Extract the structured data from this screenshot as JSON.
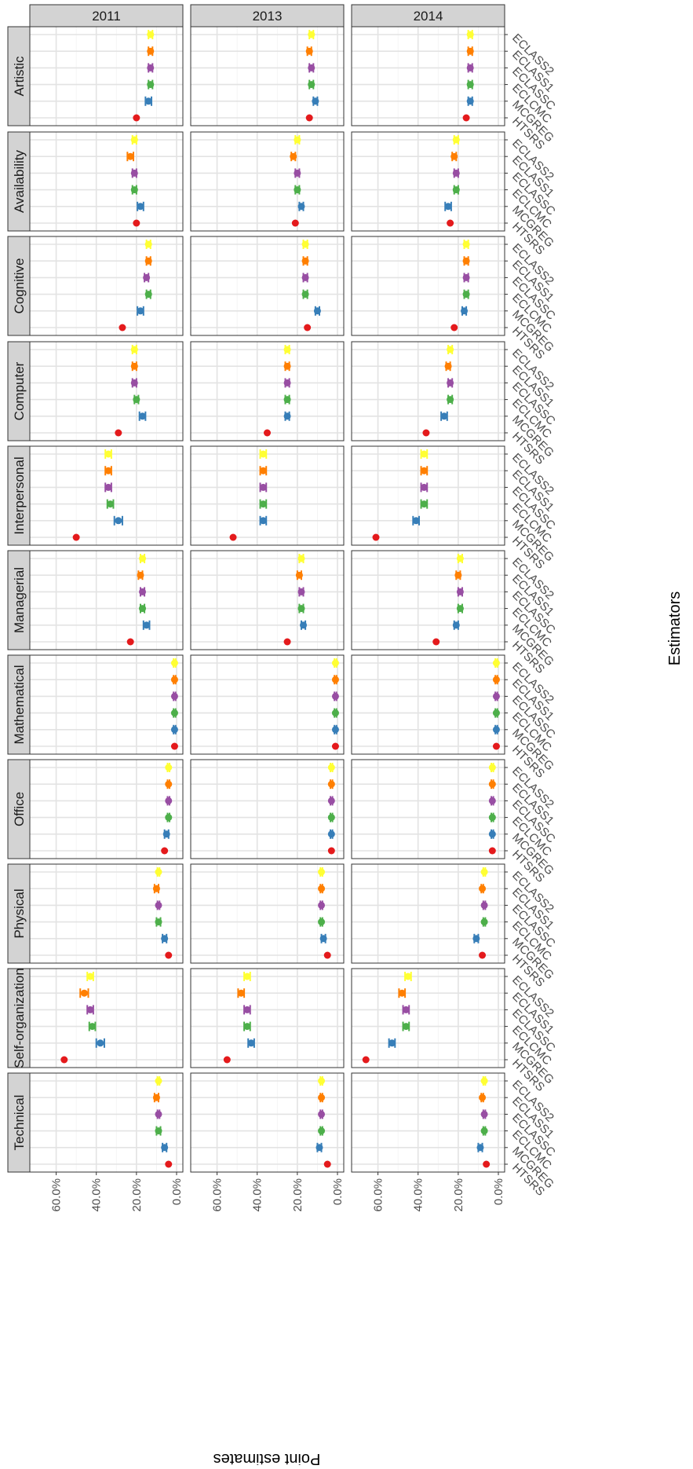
{
  "chart_data": {
    "type": "scatter",
    "subtype": "faceted point estimates with error bars (rotated plot)",
    "title": "",
    "xlabel": "Estimators",
    "ylabel": "Point estimates",
    "ylim": [
      0,
      70
    ],
    "y_ticks": [
      0,
      20,
      40,
      60
    ],
    "y_tick_labels": [
      "0.0%",
      "20.0%",
      "40.0%",
      "60.0%"
    ],
    "grid": true,
    "facet_rows": [
      "2011",
      "2013",
      "2014"
    ],
    "facet_cols": [
      "Artistic",
      "Availability",
      "Cognitive",
      "Computer",
      "Interpersonal",
      "Managerial",
      "Mathematical",
      "Office",
      "Physical",
      "Self-organization",
      "Technical"
    ],
    "categories": [
      "HTSRS",
      "MCGREG",
      "ECLCMC",
      "ECLASSC",
      "ECLASS1",
      "ECLASS2"
    ],
    "series_colors": {
      "HTSRS": "#e41a1c",
      "MCGREG": "#377eb8",
      "ECLCMC": "#4daf4a",
      "ECLASSC": "#984ea3",
      "ECLASS1": "#ff7f00",
      "ECLASS2": "#ffff33"
    },
    "panels": {
      "2011": {
        "Artistic": {
          "values": [
            20,
            14,
            13,
            13,
            13,
            13
          ],
          "errors": [
            0,
            1.5,
            1,
            1,
            1,
            1
          ]
        },
        "Availability": {
          "values": [
            20,
            18,
            21,
            21,
            23,
            21
          ],
          "errors": [
            0,
            1.5,
            1,
            1,
            1.5,
            1
          ]
        },
        "Cognitive": {
          "values": [
            27,
            18,
            14,
            15,
            14,
            14
          ],
          "errors": [
            0,
            1.5,
            1,
            1,
            1,
            1
          ]
        },
        "Computer": {
          "values": [
            29,
            17,
            20,
            21,
            21,
            21
          ],
          "errors": [
            0,
            1.5,
            1,
            1,
            1,
            1
          ]
        },
        "Interpersonal": {
          "values": [
            50,
            29,
            33,
            34,
            34,
            34
          ],
          "errors": [
            0,
            2,
            1.5,
            1.5,
            1.5,
            1.5
          ]
        },
        "Managerial": {
          "values": [
            23,
            15,
            17,
            17,
            18,
            17
          ],
          "errors": [
            0,
            1.5,
            1,
            1,
            1,
            1
          ]
        },
        "Mathematical": {
          "values": [
            1,
            1,
            1,
            1,
            1,
            1
          ],
          "errors": [
            0,
            0.5,
            0.5,
            0.5,
            0.5,
            0.5
          ]
        },
        "Office": {
          "values": [
            6,
            5,
            4,
            4,
            4,
            4
          ],
          "errors": [
            0,
            1,
            0.5,
            0.5,
            0.5,
            0.5
          ]
        },
        "Physical": {
          "values": [
            4,
            6,
            9,
            9,
            10,
            9
          ],
          "errors": [
            0,
            1,
            1,
            0.5,
            1,
            0.5
          ]
        },
        "Self-organization": {
          "values": [
            56,
            38,
            42,
            43,
            46,
            43
          ],
          "errors": [
            0,
            2,
            1.5,
            1.5,
            2,
            1.5
          ]
        },
        "Technical": {
          "values": [
            4,
            6,
            9,
            9,
            10,
            9
          ],
          "errors": [
            0,
            1,
            1,
            0.5,
            1,
            0.5
          ]
        }
      },
      "2013": {
        "Artistic": {
          "values": [
            14,
            11,
            13,
            13,
            14,
            13
          ],
          "errors": [
            0,
            1,
            1,
            1,
            1,
            1
          ]
        },
        "Availability": {
          "values": [
            21,
            18,
            20,
            20,
            22,
            20
          ],
          "errors": [
            0,
            1,
            1,
            1,
            1,
            1
          ]
        },
        "Cognitive": {
          "values": [
            15,
            10,
            16,
            16,
            16,
            16
          ],
          "errors": [
            0,
            1,
            1,
            1,
            1,
            1
          ]
        },
        "Computer": {
          "values": [
            35,
            25,
            25,
            25,
            25,
            25
          ],
          "errors": [
            0,
            1,
            1,
            1,
            1,
            1
          ]
        },
        "Interpersonal": {
          "values": [
            52,
            37,
            37,
            37,
            37,
            37
          ],
          "errors": [
            0,
            1.5,
            1.5,
            1.5,
            1.5,
            1.5
          ]
        },
        "Managerial": {
          "values": [
            25,
            17,
            18,
            18,
            19,
            18
          ],
          "errors": [
            0,
            1,
            1,
            1,
            1,
            1
          ]
        },
        "Mathematical": {
          "values": [
            1,
            1,
            1,
            1,
            1,
            1
          ],
          "errors": [
            0,
            0.5,
            0.5,
            0.5,
            0.5,
            0.5
          ]
        },
        "Office": {
          "values": [
            3,
            3,
            3,
            3,
            3,
            3
          ],
          "errors": [
            0,
            0.5,
            0.5,
            0.5,
            0.5,
            0.5
          ]
        },
        "Physical": {
          "values": [
            5,
            7,
            8,
            8,
            8,
            8
          ],
          "errors": [
            0,
            1,
            0.5,
            0.5,
            0.5,
            0.5
          ]
        },
        "Self-organization": {
          "values": [
            55,
            43,
            45,
            45,
            48,
            45
          ],
          "errors": [
            0,
            1.5,
            1.5,
            1.5,
            1.5,
            1.5
          ]
        },
        "Technical": {
          "values": [
            5,
            9,
            8,
            8,
            8,
            8
          ],
          "errors": [
            0,
            1,
            0.5,
            0.5,
            0.5,
            0.5
          ]
        }
      },
      "2014": {
        "Artistic": {
          "values": [
            16,
            14,
            14,
            14,
            14,
            14
          ],
          "errors": [
            0,
            1,
            1,
            1,
            1,
            1
          ]
        },
        "Availability": {
          "values": [
            24,
            25,
            21,
            21,
            22,
            21
          ],
          "errors": [
            0,
            1.5,
            1,
            1,
            1,
            1
          ]
        },
        "Cognitive": {
          "values": [
            22,
            17,
            16,
            16,
            16,
            16
          ],
          "errors": [
            0,
            1,
            1,
            1,
            1,
            1
          ]
        },
        "Computer": {
          "values": [
            36,
            27,
            24,
            24,
            25,
            24
          ],
          "errors": [
            0,
            1.5,
            1,
            1,
            1,
            1
          ]
        },
        "Interpersonal": {
          "values": [
            61,
            41,
            37,
            37,
            37,
            37
          ],
          "errors": [
            0,
            1.5,
            1.5,
            1.5,
            1.5,
            1.5
          ]
        },
        "Managerial": {
          "values": [
            31,
            21,
            19,
            19,
            20,
            19
          ],
          "errors": [
            0,
            1,
            1,
            1,
            1,
            1
          ]
        },
        "Mathematical": {
          "values": [
            1,
            1,
            1,
            1,
            1,
            1
          ],
          "errors": [
            0,
            0.5,
            0.5,
            0.5,
            0.5,
            0.5
          ]
        },
        "Office": {
          "values": [
            3,
            3,
            3,
            3,
            3,
            3
          ],
          "errors": [
            0,
            0.5,
            0.5,
            0.5,
            0.5,
            0.5
          ]
        },
        "Physical": {
          "values": [
            8,
            11,
            7,
            7,
            8,
            7
          ],
          "errors": [
            0,
            1,
            0.5,
            0.5,
            0.5,
            0.5
          ]
        },
        "Self-organization": {
          "values": [
            66,
            53,
            46,
            46,
            48,
            45
          ],
          "errors": [
            0,
            1.5,
            1.5,
            1.5,
            1.5,
            1.5
          ]
        },
        "Technical": {
          "values": [
            6,
            9,
            7,
            7,
            8,
            7
          ],
          "errors": [
            0,
            1,
            0.5,
            0.5,
            0.5,
            0.5
          ]
        }
      }
    }
  }
}
